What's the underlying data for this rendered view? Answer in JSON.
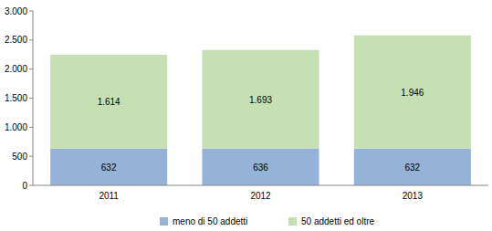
{
  "chart_data": {
    "type": "bar",
    "stacked": true,
    "data_labels": true,
    "grid": false,
    "legend": "bottom",
    "categories": [
      "2011",
      "2012",
      "2013"
    ],
    "series": [
      {
        "name": "meno di 50 addetti",
        "color": "#95b3d7",
        "values": [
          632,
          636,
          632
        ]
      },
      {
        "name": "50 addetti ed oltre",
        "color": "#c6e0b4",
        "values": [
          1614,
          1693,
          1946
        ],
        "value_labels": [
          "1.614",
          "1.693",
          "1.946"
        ]
      }
    ],
    "ylim": [
      0,
      3000
    ],
    "yticks": [
      0,
      500,
      {
        "value": 1000,
        "label": "1.000"
      },
      {
        "value": 1500,
        "label": "1.500"
      },
      {
        "value": 2000,
        "label": "2.000"
      },
      {
        "value": 2500,
        "label": "2.500"
      },
      {
        "value": 3000,
        "label": "3.000"
      }
    ]
  }
}
